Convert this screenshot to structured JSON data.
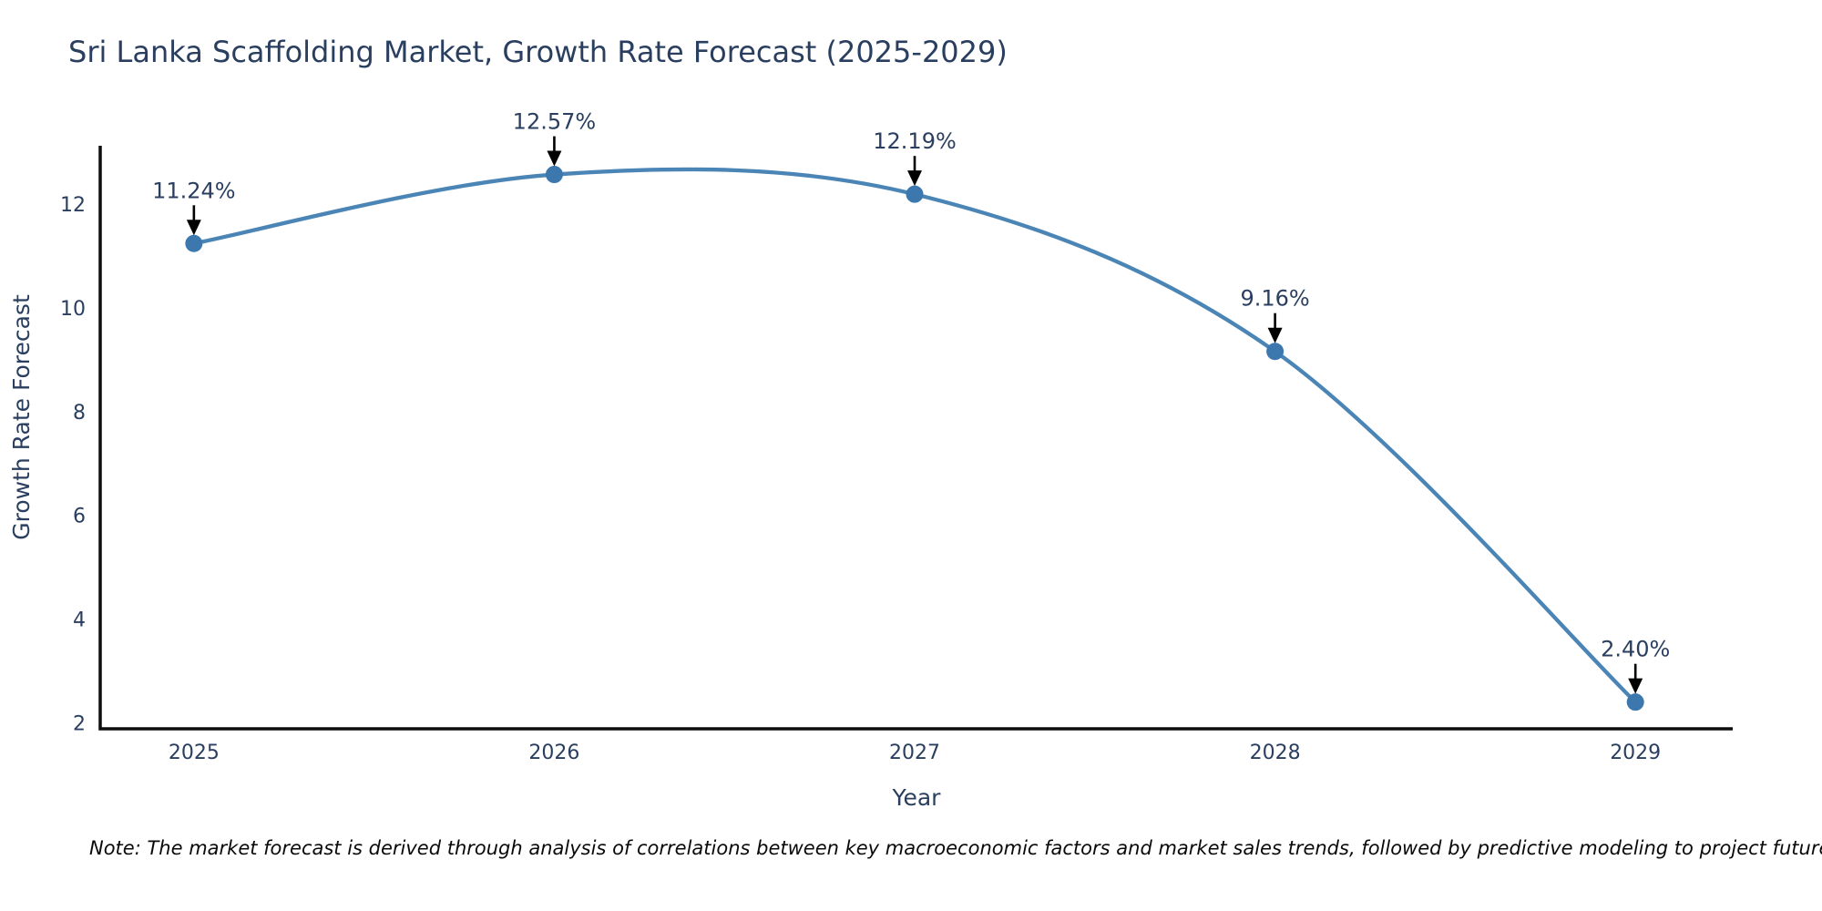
{
  "figure": {
    "title": "Sri Lanka Scaffolding Market, Growth Rate Forecast (2025-2029)",
    "note": "Note: The market forecast is derived through analysis of correlations between key macroeconomic factors and market sales trends, followed by predictive modeling to project future sales"
  },
  "chart_data": {
    "type": "line",
    "title": "Sri Lanka Scaffolding Market, Growth Rate Forecast (2025-2029)",
    "xlabel": "Year",
    "ylabel": "Growth Rate Forecast",
    "x": [
      2025,
      2026,
      2027,
      2028,
      2029
    ],
    "series": [
      {
        "name": "Growth Rate Forecast",
        "values": [
          11.24,
          12.57,
          12.19,
          9.16,
          2.4
        ]
      }
    ],
    "point_labels": [
      "11.24%",
      "12.57%",
      "12.19%",
      "9.16%",
      "2.40%"
    ],
    "xtick_labels": [
      "2025",
      "2026",
      "2027",
      "2028",
      "2029"
    ],
    "ytick_values": [
      2,
      4,
      6,
      8,
      10,
      12
    ],
    "xlim": [
      2024.74,
      2029.27
    ],
    "ylim": [
      1.885,
      13.124
    ],
    "line_shape": "spline",
    "grid": false,
    "legend_position": "none",
    "colors": {
      "line": "#4a85b6",
      "marker": "#3c77ae",
      "axis_line": "#0d0d0d",
      "text": "#2a3f5f",
      "annotation_arrow": "#000000",
      "background": "#ffffff"
    }
  }
}
